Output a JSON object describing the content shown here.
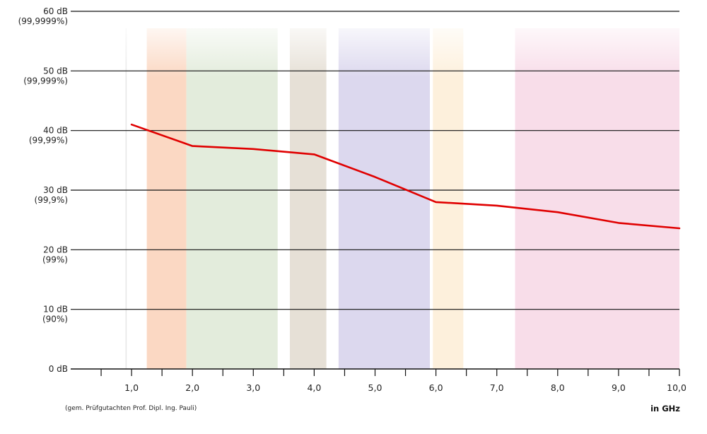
{
  "chart_data": {
    "type": "line",
    "title": "",
    "xlabel": "in GHz",
    "ylabel": "",
    "xlim": [
      0,
      10
    ],
    "ylim": [
      0,
      60
    ],
    "x_ticks": [
      {
        "value": 1,
        "label": "1,0"
      },
      {
        "value": 2,
        "label": "2,0"
      },
      {
        "value": 3,
        "label": "3,0"
      },
      {
        "value": 4,
        "label": "4,0"
      },
      {
        "value": 5,
        "label": "5,0"
      },
      {
        "value": 6,
        "label": "6,0"
      },
      {
        "value": 7,
        "label": "7,0"
      },
      {
        "value": 8,
        "label": "8,0"
      },
      {
        "value": 9,
        "label": "9,0"
      },
      {
        "value": 10,
        "label": "10,0"
      }
    ],
    "x_minor_ticks": [
      0.5,
      1.5,
      2.5,
      3.5,
      4.5,
      5.5,
      6.5,
      7.5,
      8.5,
      9.5
    ],
    "y_ticks": [
      {
        "value": 0,
        "label": "0 dB",
        "sublabel": ""
      },
      {
        "value": 10,
        "label": "10 dB",
        "sublabel": "(90%)"
      },
      {
        "value": 20,
        "label": "20 dB",
        "sublabel": "(99%)"
      },
      {
        "value": 30,
        "label": "30 dB",
        "sublabel": "(99,9%)"
      },
      {
        "value": 40,
        "label": "40 dB",
        "sublabel": "(99,99%)"
      },
      {
        "value": 50,
        "label": "50 dB",
        "sublabel": "(99,999%)"
      },
      {
        "value": 60,
        "label": "60 dB",
        "sublabel": "(99,9999%)"
      }
    ],
    "grid": "horizontal",
    "bands": [
      {
        "from": 0.9,
        "to": 0.92,
        "color": "#e8e8e8"
      },
      {
        "from": 1.25,
        "to": 1.9,
        "color": "#fbd8c3"
      },
      {
        "from": 1.9,
        "to": 3.4,
        "color": "#e3ecdc"
      },
      {
        "from": 3.6,
        "to": 4.2,
        "color": "#e6e0d6"
      },
      {
        "from": 4.4,
        "to": 5.9,
        "color": "#dcd8ee"
      },
      {
        "from": 5.95,
        "to": 6.45,
        "color": "#fdf0dc"
      },
      {
        "from": 7.3,
        "to": 10,
        "color": "#f8dde9"
      }
    ],
    "series": [
      {
        "color": "#e00000",
        "points": [
          [
            1.0,
            41.0
          ],
          [
            2.0,
            37.4
          ],
          [
            3.0,
            36.9
          ],
          [
            4.0,
            36.0
          ],
          [
            5.0,
            32.2
          ],
          [
            6.0,
            28.0
          ],
          [
            7.0,
            27.4
          ],
          [
            8.0,
            26.3
          ],
          [
            9.0,
            24.5
          ],
          [
            10.0,
            23.6
          ]
        ]
      }
    ]
  },
  "footnote": "(gem. Prüfgutachten Prof. Dipl. Ing. Pauli)",
  "x_unit": "in GHz"
}
